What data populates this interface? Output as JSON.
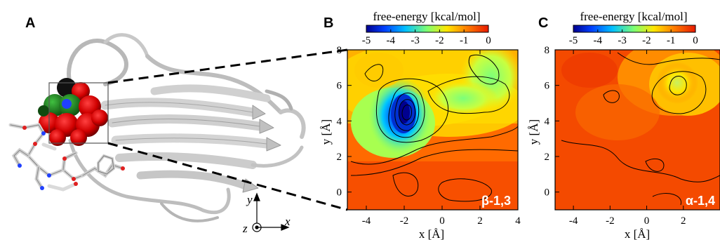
{
  "panels": {
    "a": {
      "letter": "A",
      "axis_x": "x",
      "axis_y": "y",
      "axis_z": "z"
    },
    "b": {
      "letter": "B",
      "colorbar_title": "free-energy [kcal/mol]",
      "colorbar_ticks": [
        "-5",
        "-4",
        "-3",
        "-2",
        "-1",
        "0"
      ],
      "badge": "β-1,3"
    },
    "c": {
      "letter": "C",
      "colorbar_title": "free-energy [kcal/mol]",
      "colorbar_ticks": [
        "-5",
        "-4",
        "-3",
        "-2",
        "-1",
        "0"
      ],
      "badge": "α-1,4"
    }
  },
  "chart_data": [
    {
      "type": "heatmap",
      "panel": "B",
      "title": "free-energy [kcal/mol]",
      "xlabel": "x [Å]",
      "ylabel": "y [Å]",
      "xlim": [
        -5,
        4
      ],
      "ylim": [
        -1,
        8
      ],
      "xticks": [
        "-4",
        "-2",
        "0",
        "2",
        "4"
      ],
      "yticks": [
        "0",
        "2",
        "4",
        "6",
        "8"
      ],
      "colorbar_range": [
        -5,
        0
      ],
      "colorscale": [
        "#00008f",
        "#0050ff",
        "#00c8ff",
        "#7cff7a",
        "#ffe600",
        "#ff6a00",
        "#e81a00"
      ],
      "minimum": {
        "x": -2.2,
        "y": 4.5,
        "value": -5
      },
      "annotation": "β-1,3"
    },
    {
      "type": "heatmap",
      "panel": "C",
      "title": "free-energy [kcal/mol]",
      "xlabel": "x [Å]",
      "ylabel": "y [Å]",
      "xlim": [
        -5,
        4
      ],
      "ylim": [
        -1,
        8
      ],
      "xticks": [
        "-4",
        "-2",
        "0",
        "2"
      ],
      "yticks": [
        "0",
        "2",
        "4",
        "6",
        "8"
      ],
      "colorbar_range": [
        -5,
        0
      ],
      "minimum": {
        "x": 1.5,
        "y": 6.4,
        "value": -2
      },
      "annotation": "α-1,4"
    }
  ]
}
